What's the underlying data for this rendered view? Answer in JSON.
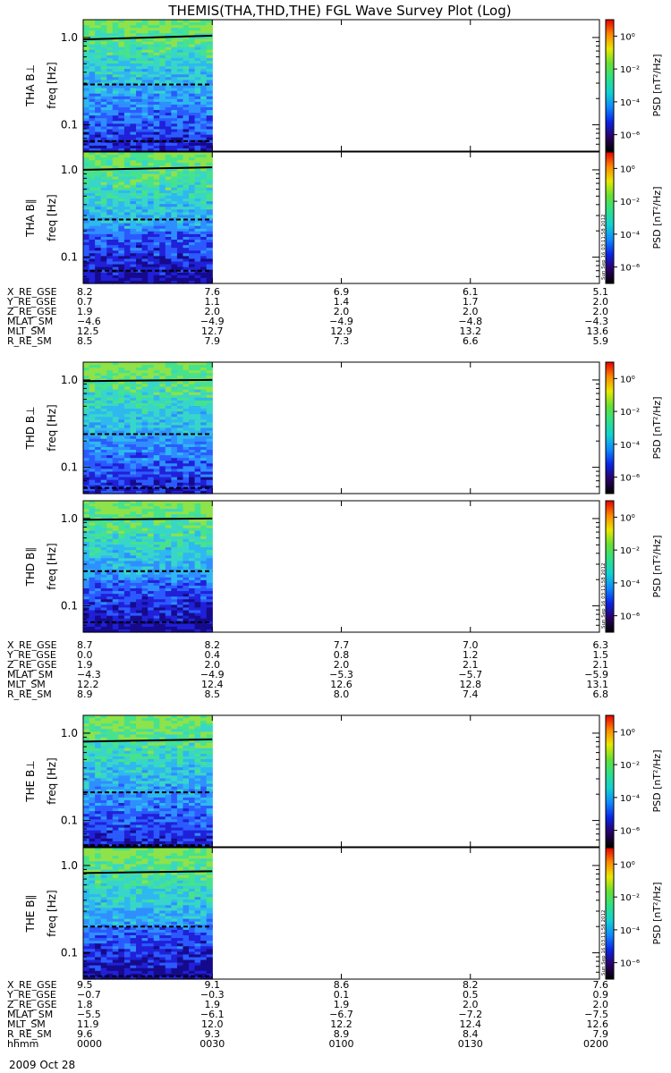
{
  "title": "THEMIS(THA,THD,THE) FGL Wave Survey Plot (Log)",
  "date_label": "2009 Oct 28",
  "side_stamp": "Sun Sep 16 03:11:58 2012",
  "cbar_title": "PSD [nT²/Hz]",
  "cbar_ticks": [
    "10⁰",
    "10⁻²",
    "10⁻⁴",
    "10⁻⁶"
  ],
  "ylabel_units": "freq [Hz]",
  "ytick_labels": [
    "1.0",
    "0.1"
  ],
  "time_row_label": "hhmm",
  "time_ticks": [
    "0000",
    "0030",
    "0100",
    "0130",
    "0200"
  ],
  "colors": {
    "colorbar": [
      "#000000",
      "#2a0066",
      "#0a24e6",
      "#0e88ff",
      "#11d1d1",
      "#2ee08a",
      "#66e033",
      "#e8e800",
      "#ff8800",
      "#e60000"
    ],
    "spectrogram": [
      "#160a8c",
      "#2020d8",
      "#2b5bff",
      "#2f8fff",
      "#2fb8f0",
      "#38d6c8",
      "#46e28e",
      "#8ee24a"
    ]
  },
  "panels": [
    {
      "id": "tha-bperp",
      "label": "THA B⊥"
    },
    {
      "id": "tha-bpar",
      "label": "THA B∥"
    },
    {
      "id": "thd-bperp",
      "label": "THD B⊥"
    },
    {
      "id": "thd-bpar",
      "label": "THD B∥"
    },
    {
      "id": "the-bperp",
      "label": "THE B⊥"
    },
    {
      "id": "the-bpar",
      "label": "THE B∥"
    }
  ],
  "ephemeris": [
    {
      "probe": "THA",
      "rows": [
        {
          "label": "X_RE_GSE",
          "values": [
            "8.2",
            "7.6",
            "6.9",
            "6.1",
            "5.1"
          ]
        },
        {
          "label": "Y_RE_GSE",
          "values": [
            "0.7",
            "1.1",
            "1.4",
            "1.7",
            "2.0"
          ]
        },
        {
          "label": "Z_RE_GSE",
          "values": [
            "1.9",
            "2.0",
            "2.0",
            "2.0",
            "2.0"
          ]
        },
        {
          "label": "MLAT_SM",
          "values": [
            "−4.6",
            "−4.9",
            "−4.9",
            "−4.8",
            "−4.3"
          ]
        },
        {
          "label": "MLT_SM",
          "values": [
            "12.5",
            "12.7",
            "12.9",
            "13.2",
            "13.6"
          ]
        },
        {
          "label": "R_RE_SM",
          "values": [
            "8.5",
            "7.9",
            "7.3",
            "6.6",
            "5.9"
          ]
        }
      ]
    },
    {
      "probe": "THD",
      "rows": [
        {
          "label": "X_RE_GSE",
          "values": [
            "8.7",
            "8.2",
            "7.7",
            "7.0",
            "6.3"
          ]
        },
        {
          "label": "Y_RE_GSE",
          "values": [
            "0.0",
            "0.4",
            "0.8",
            "1.2",
            "1.5"
          ]
        },
        {
          "label": "Z_RE_GSE",
          "values": [
            "1.9",
            "2.0",
            "2.0",
            "2.1",
            "2.1"
          ]
        },
        {
          "label": "MLAT_SM",
          "values": [
            "−4.3",
            "−4.9",
            "−5.3",
            "−5.7",
            "−5.9"
          ]
        },
        {
          "label": "MLT_SM",
          "values": [
            "12.2",
            "12.4",
            "12.6",
            "12.8",
            "13.1"
          ]
        },
        {
          "label": "R_RE_SM",
          "values": [
            "8.9",
            "8.5",
            "8.0",
            "7.4",
            "6.8"
          ]
        }
      ]
    },
    {
      "probe": "THE",
      "rows": [
        {
          "label": "X_RE_GSE",
          "values": [
            "9.5",
            "9.1",
            "8.6",
            "8.2",
            "7.6"
          ]
        },
        {
          "label": "Y_RE_GSE",
          "values": [
            "−0.7",
            "−0.3",
            "0.1",
            "0.5",
            "0.9"
          ]
        },
        {
          "label": "Z_RE_GSE",
          "values": [
            "1.8",
            "1.9",
            "1.9",
            "2.0",
            "2.0"
          ]
        },
        {
          "label": "MLAT_SM",
          "values": [
            "−5.5",
            "−6.1",
            "−6.7",
            "−7.2",
            "−7.5"
          ]
        },
        {
          "label": "MLT_SM",
          "values": [
            "11.9",
            "12.0",
            "12.2",
            "12.4",
            "12.6"
          ]
        },
        {
          "label": "R_RE_SM",
          "values": [
            "9.6",
            "9.3",
            "8.9",
            "8.4",
            "7.9"
          ]
        }
      ]
    }
  ],
  "chart_data": {
    "type": "heatmap",
    "title": "THEMIS(THA,THD,THE) FGL Wave Survey Plot (Log)",
    "x_unit": "hhmm",
    "x_ticks": [
      "0000",
      "0030",
      "0100",
      "0130",
      "0200"
    ],
    "x_range_minutes": [
      0,
      120
    ],
    "data_coverage_minutes": [
      0,
      30
    ],
    "y_scale": "log",
    "y_label": "freq [Hz]",
    "y_ticks": [
      1.0,
      0.1
    ],
    "y_range_hz": [
      0.05,
      1.6
    ],
    "color_scale": "log",
    "colorbar_label": "PSD [nT²/Hz]",
    "colorbar_range": [
      1e-07,
      10
    ],
    "colorbar_ticks": [
      1,
      0.01,
      0.0001,
      1e-06
    ],
    "overlay_lines": [
      {
        "style": "solid",
        "meaning": "fce-type line",
        "y_hz_start": [
          0.95,
          1.0,
          0.97,
          0.97,
          0.8,
          0.82
        ],
        "y_hz_end": [
          1.05,
          1.07,
          1.0,
          1.0,
          0.85,
          0.86
        ]
      },
      {
        "style": "dashed",
        "y_hz": [
          0.29,
          0.27,
          0.24,
          0.25,
          0.21,
          0.2
        ]
      },
      {
        "style": "dashed",
        "y_hz": [
          0.065,
          0.07,
          0.058,
          0.065,
          0.052,
          0.054
        ]
      }
    ],
    "legend": "none",
    "grid": false
  }
}
